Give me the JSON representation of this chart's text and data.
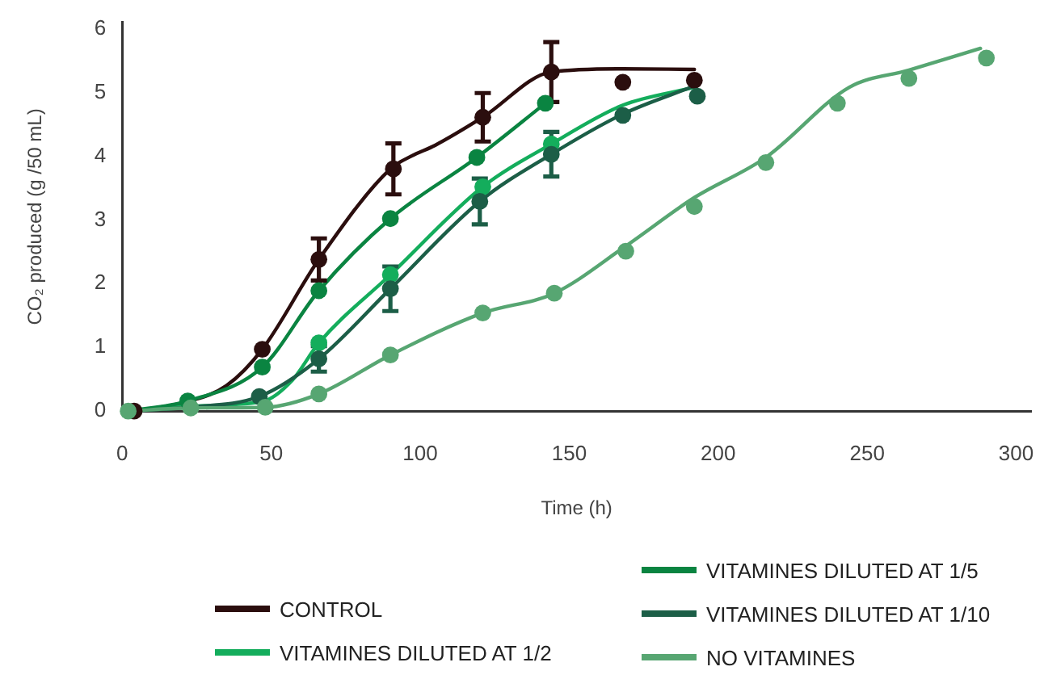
{
  "chart_data": {
    "type": "scatter",
    "xlabel": "Time (h)",
    "ylabel": "CO₂ produced (g /50 mL)",
    "xlim": [
      0,
      305
    ],
    "xticks": [
      0,
      50,
      100,
      150,
      200,
      250,
      300
    ],
    "ylim": [
      0,
      6.1
    ],
    "yticks": [
      0,
      1,
      2,
      3,
      4,
      5,
      6
    ],
    "legend": "bottom",
    "marker": "circle",
    "series": [
      {
        "name": "CONTROL",
        "type": "line",
        "marker": "none",
        "color": "#2b0e0e",
        "x": [
          4,
          22,
          35,
          47,
          66,
          90,
          97,
          105,
          121,
          144,
          168,
          192
        ],
        "values": [
          0,
          0.15,
          0.4,
          0.97,
          2.38,
          3.8,
          4.0,
          4.17,
          4.61,
          5.32,
          5.37,
          5.36
        ]
      },
      {
        "name": "VITAMINES DILUTED AT 1/2",
        "type": "line",
        "marker": "none",
        "color": "#14ad5c",
        "x": [
          2,
          22,
          47,
          57,
          66,
          90,
          121,
          144,
          168,
          192
        ],
        "values": [
          0,
          0.08,
          0.15,
          0.48,
          1.07,
          2.14,
          3.52,
          4.19,
          4.8,
          5.08
        ]
      },
      {
        "name": "VITAMINES DILUTED AT 1/5",
        "type": "line",
        "marker": "none",
        "color": "#0a8441",
        "x": [
          2,
          22,
          47,
          66,
          90,
          119,
          142
        ],
        "values": [
          0,
          0.16,
          0.69,
          1.89,
          3.02,
          3.98,
          4.83
        ]
      },
      {
        "name": "VITAMINES DILUTED AT 1/10",
        "type": "line",
        "marker": "none",
        "color": "#1c5e47",
        "x": [
          2,
          22,
          46,
          66,
          90,
          120,
          144,
          168,
          192
        ],
        "values": [
          0,
          0.06,
          0.23,
          0.82,
          1.92,
          3.29,
          4.03,
          4.66,
          5.1
        ]
      },
      {
        "name": "NO VITAMINES",
        "type": "line",
        "marker": "none",
        "color": "#57a672",
        "x": [
          2,
          23,
          48,
          66,
          90,
          121,
          145,
          169,
          192,
          216,
          244,
          264,
          288
        ],
        "values": [
          0,
          0.05,
          0.06,
          0.27,
          0.88,
          1.54,
          1.85,
          2.59,
          3.35,
          3.98,
          5.08,
          5.35,
          5.69
        ]
      },
      {
        "color": "#2b0e0e",
        "x": [
          4,
          47,
          66,
          91,
          121,
          144,
          168,
          192
        ],
        "values": [
          0,
          0.97,
          2.38,
          3.8,
          4.61,
          5.32,
          5.16,
          5.19
        ],
        "errors": [
          null,
          null,
          0.33,
          0.4,
          0.38,
          0.47,
          null,
          null
        ]
      },
      {
        "color": "#14ad5c",
        "x": [
          66,
          90,
          121,
          144
        ],
        "values": [
          1.07,
          2.14,
          3.52,
          4.19
        ]
      },
      {
        "color": "#0a8441",
        "x": [
          22,
          47,
          66,
          90,
          119,
          142
        ],
        "values": [
          0.16,
          0.69,
          1.89,
          3.02,
          3.98,
          4.83
        ]
      },
      {
        "color": "#1c5e47",
        "x": [
          46,
          66,
          90,
          120,
          144,
          168,
          193
        ],
        "values": [
          0.23,
          0.82,
          1.92,
          3.29,
          4.03,
          4.64,
          4.94
        ],
        "errors": [
          null,
          0.2,
          0.35,
          0.36,
          0.35,
          null,
          null
        ]
      },
      {
        "color": "#57a672",
        "x": [
          2,
          23,
          48,
          66,
          90,
          121,
          145,
          169,
          192,
          216,
          240,
          264,
          290
        ],
        "values": [
          0,
          0.05,
          0.06,
          0.27,
          0.88,
          1.54,
          1.85,
          2.51,
          3.21,
          3.9,
          4.83,
          5.22,
          5.54
        ]
      }
    ]
  }
}
